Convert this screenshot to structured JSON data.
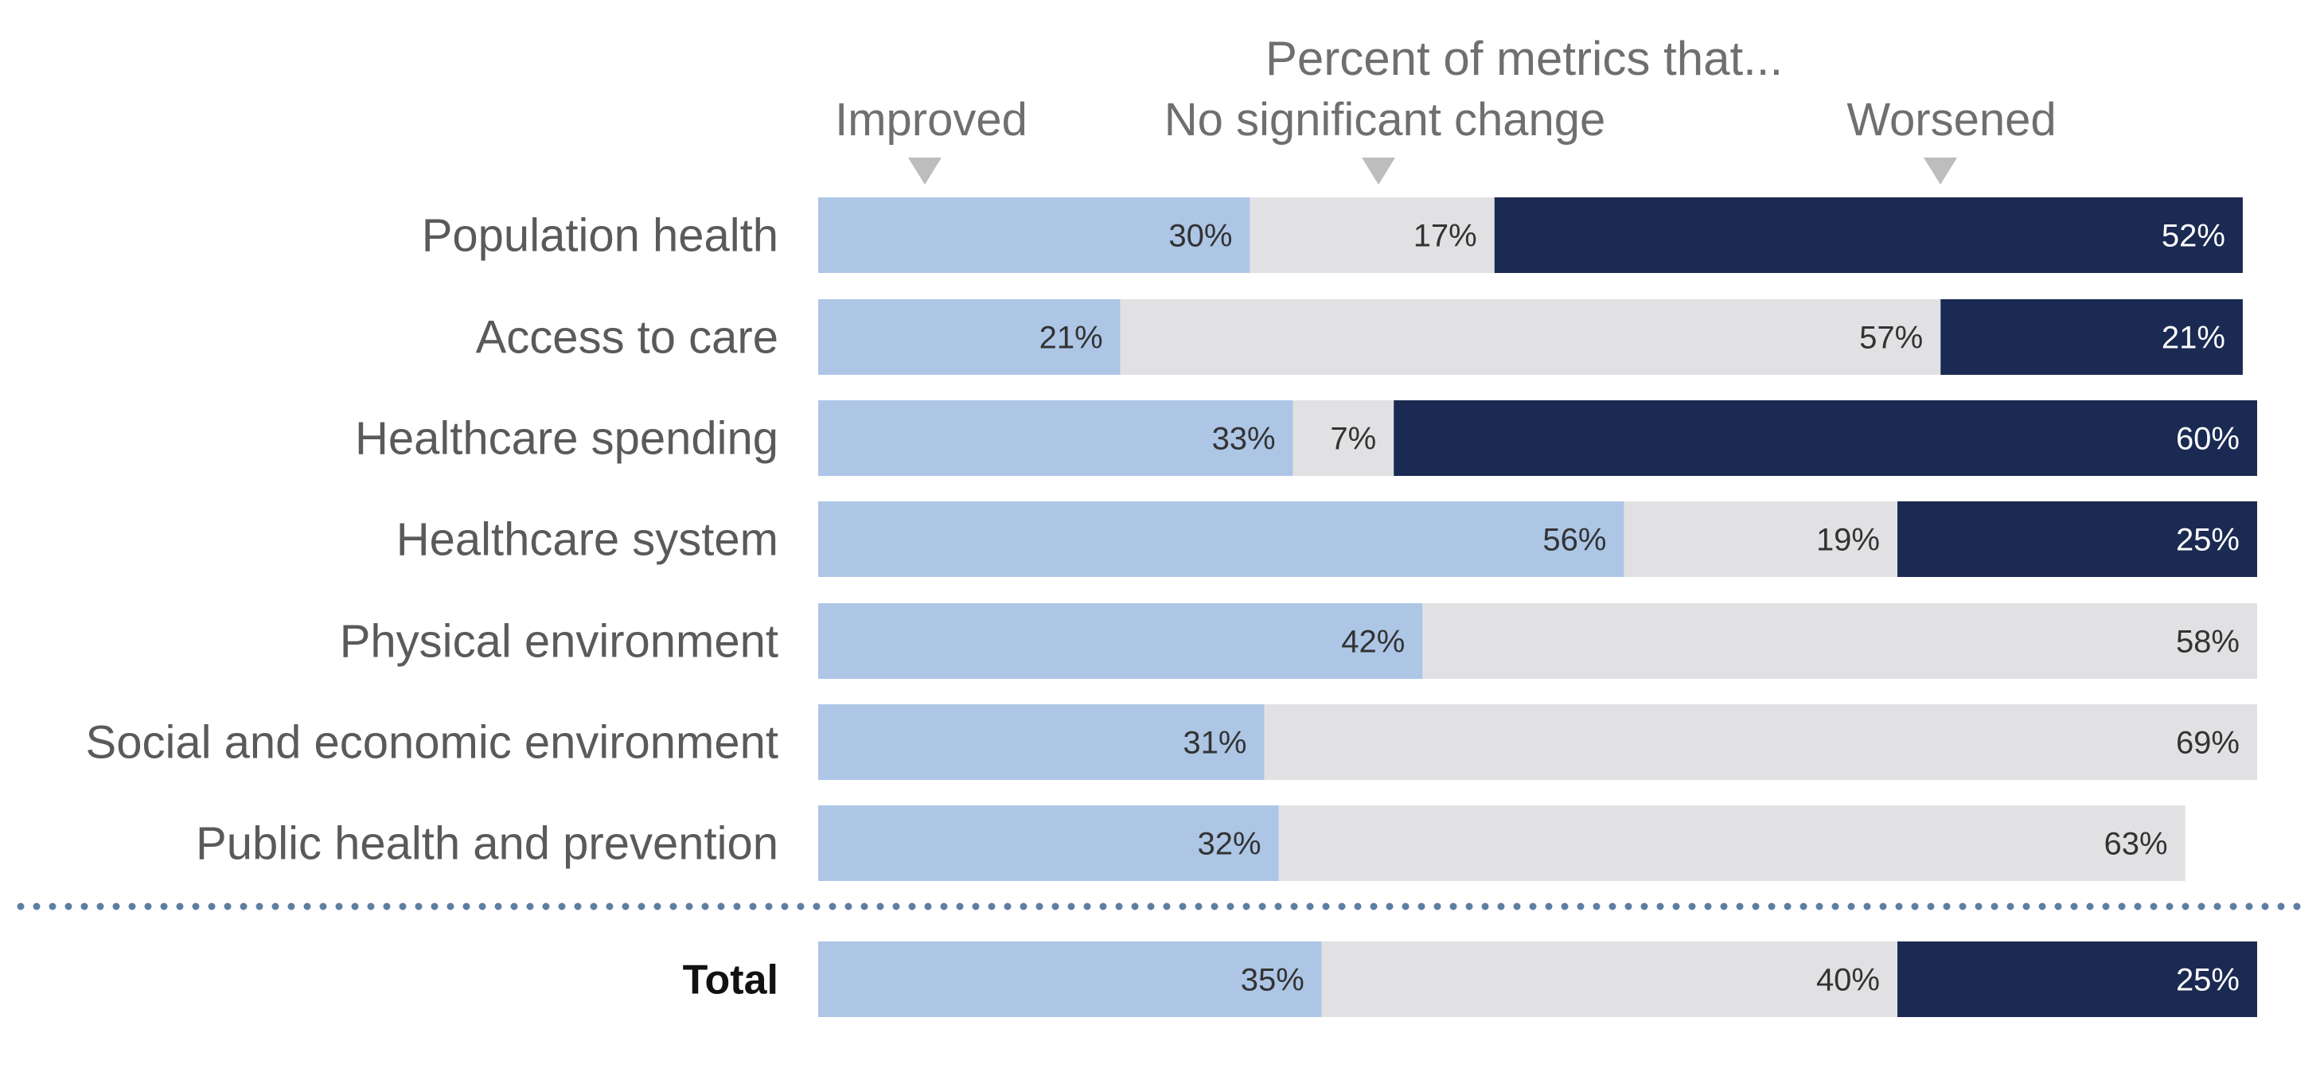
{
  "chart_data": {
    "type": "bar",
    "orientation": "horizontal",
    "stacked": true,
    "normalized": true,
    "title": "Percent of metrics that...",
    "xlabel": "",
    "ylabel": "",
    "xlim": [
      0,
      100
    ],
    "grid": false,
    "legend_position": "top",
    "categories": [
      "Population health",
      "Access to care",
      "Healthcare spending",
      "Healthcare system",
      "Physical environment",
      "Social and economic environment",
      "Public health and prevention"
    ],
    "series": [
      {
        "name": "Improved",
        "color": "#adc6e6",
        "label_color": "#333333",
        "values": [
          30,
          21,
          33,
          56,
          42,
          31,
          32
        ]
      },
      {
        "name": "No significant change",
        "color": "#e1e1e4",
        "label_color": "#333333",
        "values": [
          17,
          57,
          7,
          19,
          58,
          69,
          63
        ]
      },
      {
        "name": "Worsened",
        "color": "#1b2a52",
        "label_color": "#ffffff",
        "values": [
          52,
          21,
          60,
          25,
          0,
          0,
          0
        ]
      }
    ],
    "total": {
      "label": "Total",
      "values": [
        35,
        40,
        25
      ]
    },
    "separator": "dotted-line",
    "separator_color": "#5d7fa0",
    "value_suffix": "%"
  }
}
